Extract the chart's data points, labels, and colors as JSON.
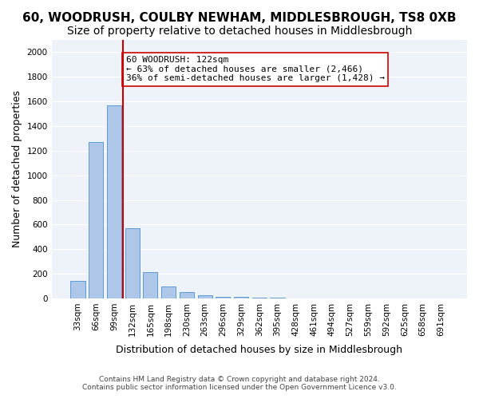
{
  "title": "60, WOODRUSH, COULBY NEWHAM, MIDDLESBROUGH, TS8 0XB",
  "subtitle": "Size of property relative to detached houses in Middlesbrough",
  "xlabel": "Distribution of detached houses by size in Middlesbrough",
  "ylabel": "Number of detached properties",
  "categories": [
    "33sqm",
    "66sqm",
    "99sqm",
    "132sqm",
    "165sqm",
    "198sqm",
    "230sqm",
    "263sqm",
    "296sqm",
    "329sqm",
    "362sqm",
    "395sqm",
    "428sqm",
    "461sqm",
    "494sqm",
    "527sqm",
    "559sqm",
    "592sqm",
    "625sqm",
    "658sqm",
    "691sqm"
  ],
  "values": [
    140,
    1270,
    1570,
    570,
    215,
    95,
    50,
    25,
    15,
    10,
    5,
    5,
    0,
    0,
    0,
    0,
    0,
    0,
    0,
    0,
    0
  ],
  "bar_color": "#aec6e8",
  "bar_edge_color": "#5b9bd5",
  "vline_x": 3,
  "vline_color": "#cc0000",
  "annotation_text": "60 WOODRUSH: 122sqm\n← 63% of detached houses are smaller (2,466)\n36% of semi-detached houses are larger (1,428) →",
  "annotation_box_color": "#ffffff",
  "annotation_box_edge": "#cc0000",
  "ylim": [
    0,
    2100
  ],
  "yticks": [
    0,
    200,
    400,
    600,
    800,
    1000,
    1200,
    1400,
    1600,
    1800,
    2000
  ],
  "bg_color": "#eef3fa",
  "footer": "Contains HM Land Registry data © Crown copyright and database right 2024.\nContains public sector information licensed under the Open Government Licence v3.0.",
  "title_fontsize": 11,
  "subtitle_fontsize": 10,
  "xlabel_fontsize": 9,
  "ylabel_fontsize": 9,
  "tick_fontsize": 7.5,
  "annot_fontsize": 8,
  "footer_fontsize": 6.5
}
